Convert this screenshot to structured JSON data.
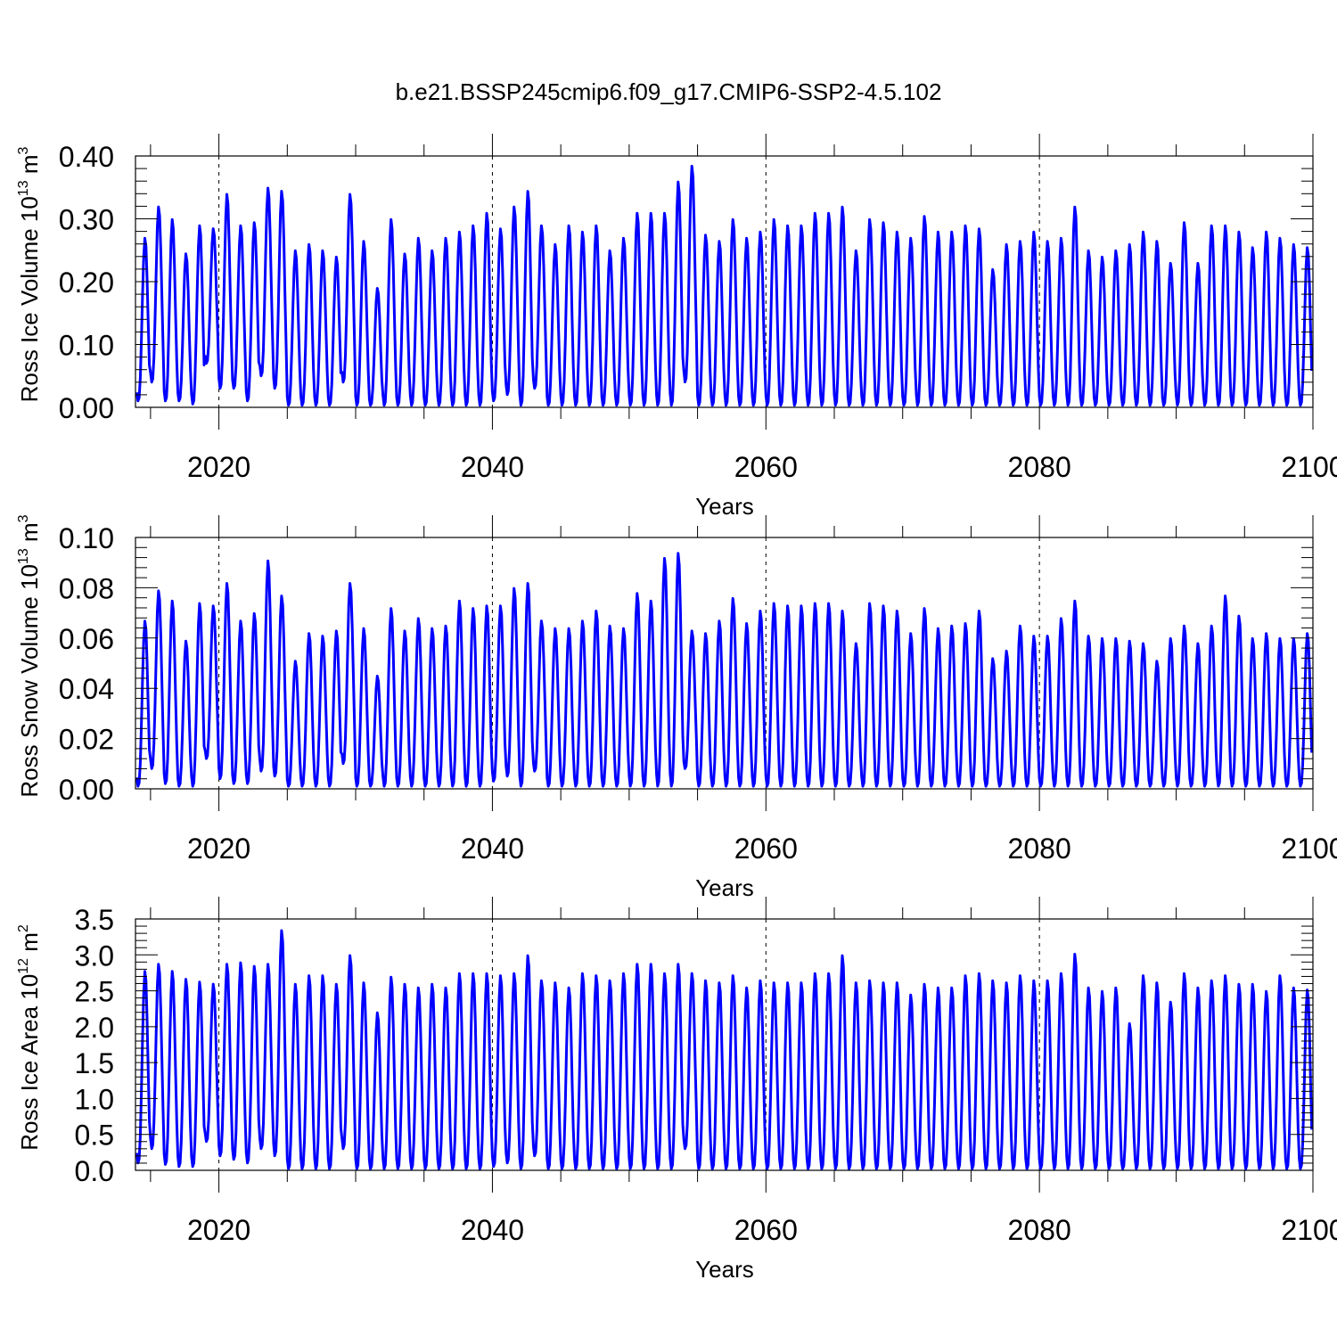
{
  "title": "b.e21.BSSP245cmip6.f09_g17.CMIP6-SSP2-4.5.102",
  "chart_data": [
    {
      "type": "line",
      "ylabel": {
        "text": "Ross Ice Volume 10",
        "sup1": "13",
        "mid": " m",
        "sup2": "3"
      },
      "xlabel": "Years",
      "xlim": [
        2013.9,
        2100
      ],
      "ylim": [
        0,
        0.4
      ],
      "x_ticks": [
        2020,
        2040,
        2060,
        2080,
        2100
      ],
      "y_ticks": [
        0.0,
        0.1,
        0.2,
        0.3,
        0.4
      ],
      "y_tick_labels": [
        "0.00",
        "0.10",
        "0.20",
        "0.30",
        "0.40"
      ],
      "grid": "dashed vertical lines at x ticks",
      "series": [
        {
          "color": "#0000ff",
          "start_year": 2014,
          "annual_min": [
            0.01,
            0.04,
            0.01,
            0.01,
            0.005,
            0.07,
            0.03,
            0.03,
            0.01,
            0.05,
            0.03,
            0.003,
            0.003,
            0.003,
            0.003,
            0.04,
            0.003,
            0.003,
            0.003,
            0.003,
            0.003,
            0.003,
            0.003,
            0.003,
            0.003,
            0.003,
            0.01,
            0.02,
            0.003,
            0.03,
            0.003,
            0.003,
            0.003,
            0.003,
            0.003,
            0.003,
            0.003,
            0.003,
            0.003,
            0.003,
            0.04,
            0.003,
            0.003,
            0.003,
            0.003,
            0.003,
            0.003,
            0.003,
            0.003,
            0.003,
            0.003,
            0.003,
            0.003,
            0.003,
            0.003,
            0.003,
            0.003,
            0.003,
            0.003,
            0.003,
            0.003,
            0.003,
            0.003,
            0.003,
            0.003,
            0.003,
            0.003,
            0.003,
            0.003,
            0.003,
            0.003,
            0.003,
            0.003,
            0.003,
            0.003,
            0.003,
            0.003,
            0.003,
            0.003,
            0.003,
            0.003,
            0.003,
            0.003,
            0.003,
            0.003,
            0.003
          ],
          "annual_max": [
            0.27,
            0.32,
            0.3,
            0.245,
            0.29,
            0.285,
            0.34,
            0.29,
            0.295,
            0.35,
            0.345,
            0.25,
            0.26,
            0.25,
            0.24,
            0.34,
            0.265,
            0.19,
            0.3,
            0.245,
            0.27,
            0.25,
            0.27,
            0.28,
            0.29,
            0.31,
            0.285,
            0.32,
            0.345,
            0.29,
            0.26,
            0.29,
            0.28,
            0.29,
            0.25,
            0.27,
            0.31,
            0.31,
            0.31,
            0.36,
            0.385,
            0.275,
            0.265,
            0.3,
            0.27,
            0.28,
            0.3,
            0.29,
            0.29,
            0.31,
            0.31,
            0.32,
            0.25,
            0.3,
            0.295,
            0.28,
            0.27,
            0.305,
            0.28,
            0.28,
            0.29,
            0.285,
            0.22,
            0.26,
            0.265,
            0.28,
            0.265,
            0.27,
            0.32,
            0.25,
            0.24,
            0.25,
            0.26,
            0.28,
            0.265,
            0.23,
            0.295,
            0.23,
            0.29,
            0.29,
            0.28,
            0.255,
            0.28,
            0.27,
            0.26,
            0.255
          ]
        }
      ]
    },
    {
      "type": "line",
      "ylabel": {
        "text": "Ross Snow Volume 10",
        "sup1": "13",
        "mid": " m",
        "sup2": "3"
      },
      "xlabel": "Years",
      "xlim": [
        2013.9,
        2100
      ],
      "ylim": [
        0,
        0.1
      ],
      "x_ticks": [
        2020,
        2040,
        2060,
        2080,
        2100
      ],
      "y_ticks": [
        0.0,
        0.02,
        0.04,
        0.06,
        0.08,
        0.1
      ],
      "y_tick_labels": [
        "0.00",
        "0.02",
        "0.04",
        "0.06",
        "0.08",
        "0.10"
      ],
      "grid": "dashed vertical lines at x ticks",
      "series": [
        {
          "color": "#0000ff",
          "start_year": 2014,
          "annual_min": [
            0.001,
            0.008,
            0.002,
            0.001,
            0.001,
            0.012,
            0.004,
            0.002,
            0.002,
            0.007,
            0.005,
            0.001,
            0.001,
            0.001,
            0.001,
            0.01,
            0.001,
            0.001,
            0.001,
            0.001,
            0.001,
            0.001,
            0.001,
            0.001,
            0.001,
            0.001,
            0.003,
            0.005,
            0.001,
            0.007,
            0.001,
            0.001,
            0.001,
            0.001,
            0.001,
            0.001,
            0.001,
            0.001,
            0.001,
            0.001,
            0.008,
            0.001,
            0.001,
            0.001,
            0.001,
            0.001,
            0.001,
            0.001,
            0.001,
            0.001,
            0.001,
            0.001,
            0.001,
            0.001,
            0.001,
            0.001,
            0.001,
            0.001,
            0.001,
            0.001,
            0.001,
            0.001,
            0.001,
            0.001,
            0.001,
            0.001,
            0.001,
            0.001,
            0.001,
            0.001,
            0.001,
            0.001,
            0.001,
            0.001,
            0.001,
            0.001,
            0.001,
            0.001,
            0.001,
            0.001,
            0.001,
            0.001,
            0.001,
            0.001,
            0.001,
            0.001
          ],
          "annual_max": [
            0.067,
            0.079,
            0.075,
            0.059,
            0.074,
            0.073,
            0.082,
            0.067,
            0.07,
            0.091,
            0.077,
            0.051,
            0.062,
            0.061,
            0.063,
            0.082,
            0.064,
            0.045,
            0.072,
            0.063,
            0.068,
            0.064,
            0.065,
            0.075,
            0.072,
            0.073,
            0.073,
            0.08,
            0.082,
            0.067,
            0.064,
            0.064,
            0.067,
            0.071,
            0.065,
            0.064,
            0.078,
            0.075,
            0.092,
            0.094,
            0.063,
            0.062,
            0.067,
            0.076,
            0.066,
            0.071,
            0.074,
            0.073,
            0.073,
            0.074,
            0.074,
            0.071,
            0.058,
            0.074,
            0.073,
            0.071,
            0.062,
            0.072,
            0.064,
            0.065,
            0.066,
            0.071,
            0.052,
            0.055,
            0.065,
            0.061,
            0.061,
            0.068,
            0.075,
            0.061,
            0.06,
            0.06,
            0.059,
            0.058,
            0.051,
            0.06,
            0.065,
            0.058,
            0.065,
            0.077,
            0.069,
            0.06,
            0.062,
            0.06,
            0.06,
            0.062
          ]
        }
      ]
    },
    {
      "type": "line",
      "ylabel": {
        "text": "Ross Ice Area 10",
        "sup1": "12",
        "mid": " m",
        "sup2": "2"
      },
      "xlabel": "Years",
      "xlim": [
        2013.9,
        2100
      ],
      "ylim": [
        0,
        3.5
      ],
      "x_ticks": [
        2020,
        2040,
        2060,
        2080,
        2100
      ],
      "y_ticks": [
        0.0,
        0.5,
        1.0,
        1.5,
        2.0,
        2.5,
        3.0,
        3.5
      ],
      "y_tick_labels": [
        "0.0",
        "0.5",
        "1.0",
        "1.5",
        "2.0",
        "2.5",
        "3.0",
        "3.5"
      ],
      "grid": "dashed vertical lines at x ticks",
      "series": [
        {
          "color": "#0000ff",
          "start_year": 2014,
          "annual_min": [
            0.1,
            0.3,
            0.08,
            0.05,
            0.05,
            0.4,
            0.2,
            0.15,
            0.1,
            0.3,
            0.2,
            0.02,
            0.02,
            0.02,
            0.02,
            0.3,
            0.02,
            0.02,
            0.02,
            0.02,
            0.02,
            0.02,
            0.02,
            0.02,
            0.02,
            0.02,
            0.05,
            0.1,
            0.02,
            0.2,
            0.02,
            0.02,
            0.02,
            0.02,
            0.02,
            0.02,
            0.02,
            0.02,
            0.02,
            0.02,
            0.3,
            0.02,
            0.02,
            0.02,
            0.02,
            0.02,
            0.02,
            0.02,
            0.02,
            0.02,
            0.02,
            0.02,
            0.02,
            0.02,
            0.02,
            0.02,
            0.02,
            0.02,
            0.02,
            0.02,
            0.02,
            0.02,
            0.02,
            0.02,
            0.02,
            0.02,
            0.02,
            0.02,
            0.02,
            0.02,
            0.02,
            0.02,
            0.02,
            0.02,
            0.02,
            0.02,
            0.02,
            0.02,
            0.02,
            0.02,
            0.02,
            0.02,
            0.02,
            0.02,
            0.02,
            0.02
          ],
          "annual_max": [
            2.78,
            2.88,
            2.78,
            2.67,
            2.63,
            2.6,
            2.88,
            2.9,
            2.85,
            2.88,
            3.35,
            2.6,
            2.72,
            2.72,
            2.6,
            3.0,
            2.62,
            2.2,
            2.7,
            2.6,
            2.55,
            2.6,
            2.55,
            2.75,
            2.75,
            2.75,
            2.72,
            2.75,
            3.0,
            2.65,
            2.62,
            2.55,
            2.75,
            2.72,
            2.65,
            2.75,
            2.88,
            2.88,
            2.75,
            2.88,
            2.75,
            2.65,
            2.62,
            2.72,
            2.55,
            2.65,
            2.62,
            2.62,
            2.62,
            2.75,
            2.75,
            3.0,
            2.62,
            2.65,
            2.62,
            2.62,
            2.45,
            2.6,
            2.55,
            2.55,
            2.72,
            2.75,
            2.65,
            2.62,
            2.72,
            2.65,
            2.65,
            2.75,
            3.02,
            2.55,
            2.5,
            2.55,
            2.05,
            2.72,
            2.62,
            2.35,
            2.75,
            2.55,
            2.65,
            2.72,
            2.6,
            2.6,
            2.5,
            2.72,
            2.55,
            2.52
          ]
        }
      ]
    }
  ]
}
